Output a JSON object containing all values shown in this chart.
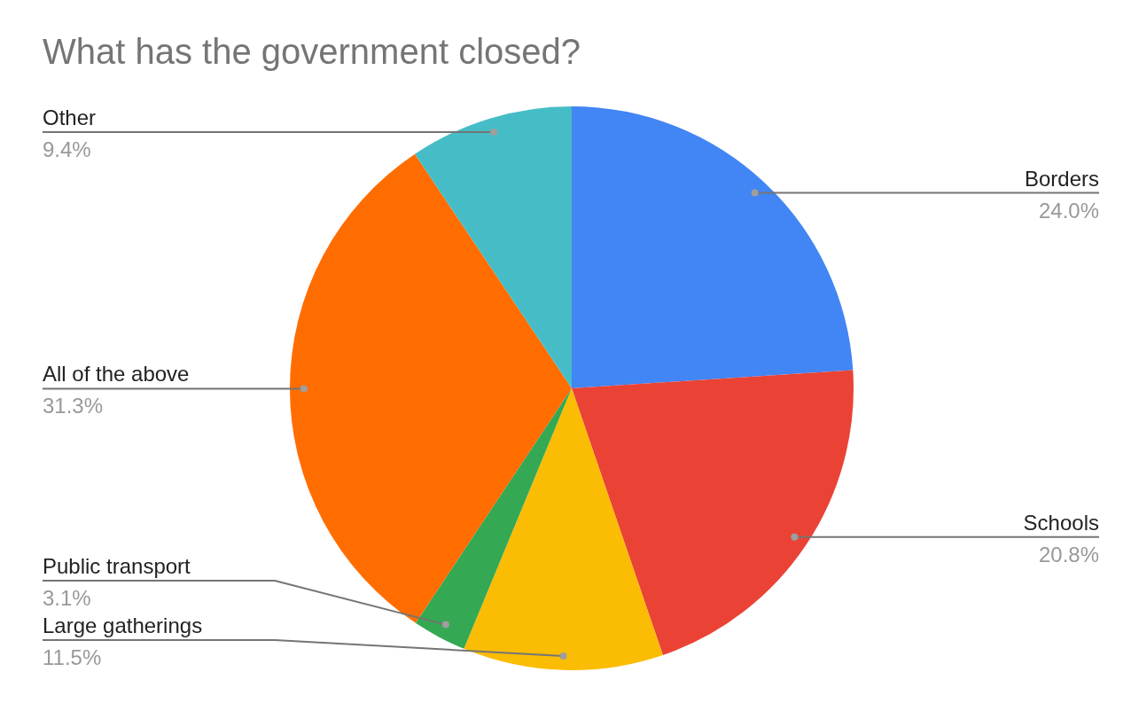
{
  "chart_data": {
    "type": "pie",
    "title": "What has the government closed?",
    "categories": [
      "Borders",
      "Schools",
      "Large gatherings",
      "Public transport",
      "All of the above",
      "Other"
    ],
    "values": [
      24.0,
      20.8,
      11.5,
      3.1,
      31.3,
      9.4
    ],
    "value_labels": [
      "24.0%",
      "20.8%",
      "11.5%",
      "3.1%",
      "31.3%",
      "9.4%"
    ],
    "colors": [
      "#4285f4",
      "#ea4335",
      "#fbbc04",
      "#34a853",
      "#ff6d01",
      "#46bdc6"
    ],
    "legend": false
  }
}
